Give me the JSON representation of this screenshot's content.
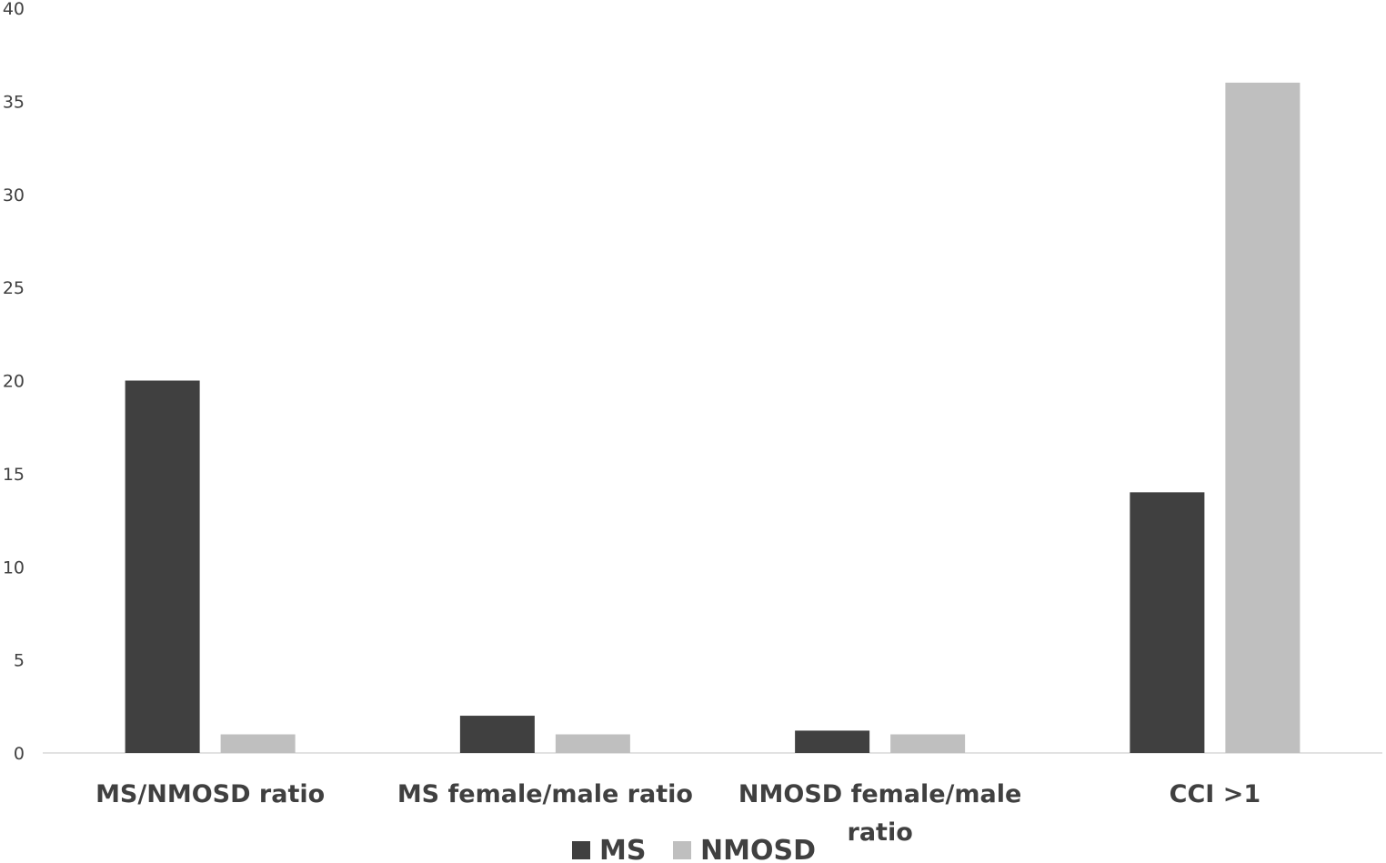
{
  "chart_data": {
    "type": "bar",
    "title": "",
    "xlabel": "",
    "ylabel": "",
    "categories": [
      [
        "MS/NMOSD ratio"
      ],
      [
        "MS female/male ratio"
      ],
      [
        "NMOSD female/male",
        "ratio"
      ],
      [
        "CCI >1"
      ]
    ],
    "series": [
      {
        "name": "MS",
        "color": "#404040",
        "values": [
          20,
          2,
          1.2,
          14
        ]
      },
      {
        "name": "NMOSD",
        "color": "#bfbfbf",
        "values": [
          1,
          1,
          1,
          36
        ]
      }
    ],
    "ylim": [
      0,
      40
    ],
    "yticks": [
      "0",
      "5",
      "10",
      "15",
      "20",
      "25",
      "30",
      "35",
      "40"
    ],
    "grid": false,
    "legend_position": "bottom"
  }
}
